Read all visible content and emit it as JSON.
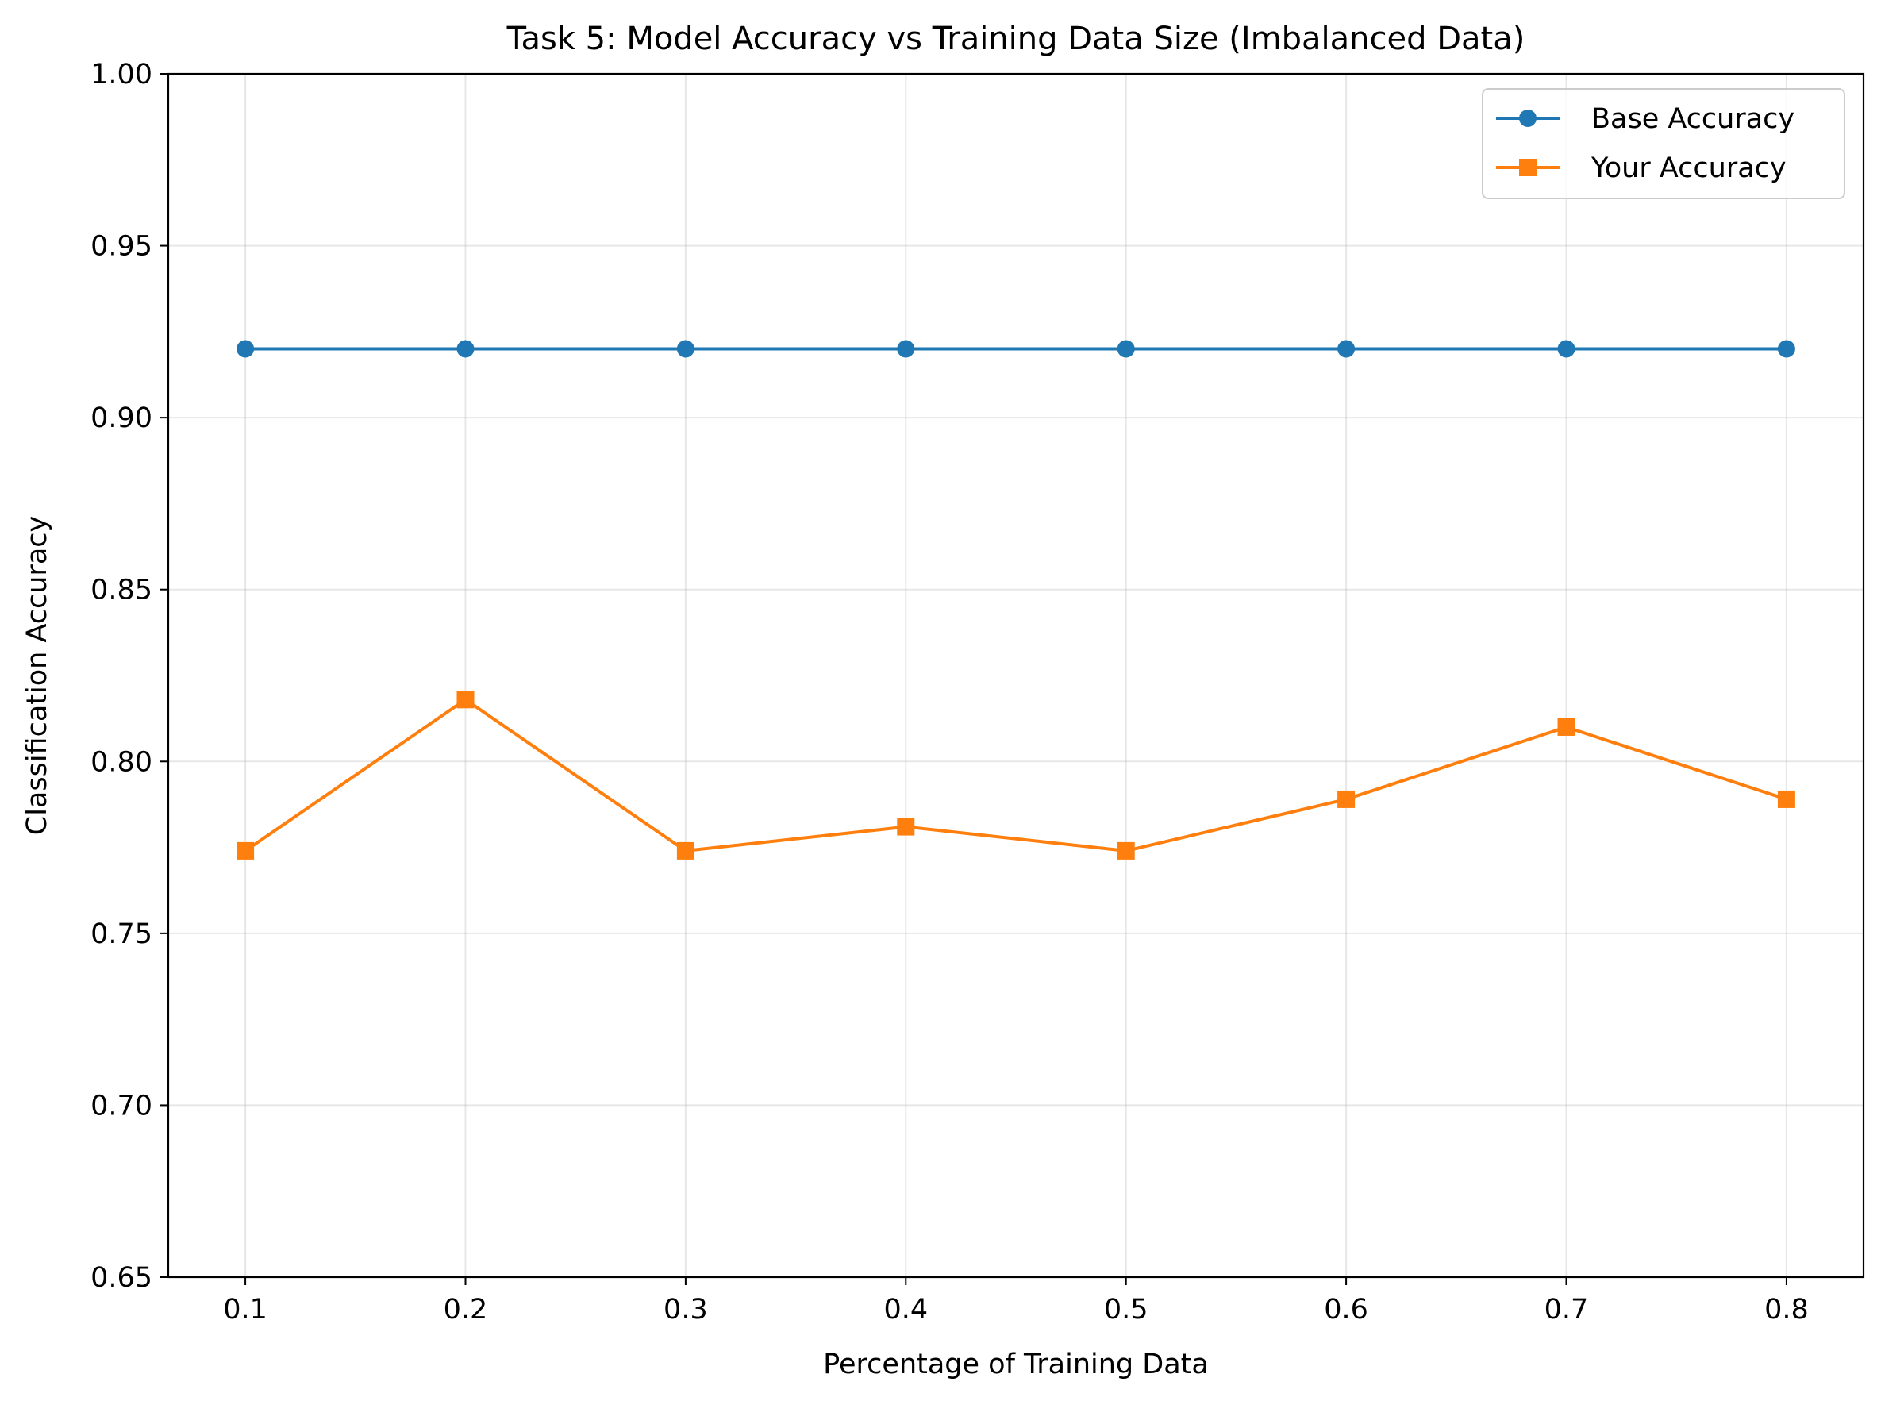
{
  "chart_data": {
    "type": "line",
    "title": "Task 5: Model Accuracy vs Training Data Size (Imbalanced Data)",
    "xlabel": "Percentage of Training Data",
    "ylabel": "Classification Accuracy",
    "x": [
      0.1,
      0.2,
      0.3,
      0.4,
      0.5,
      0.6,
      0.7,
      0.8
    ],
    "x_tick_labels": [
      "0.1",
      "0.2",
      "0.3",
      "0.4",
      "0.5",
      "0.6",
      "0.7",
      "0.8"
    ],
    "y_tick_labels": [
      "0.65",
      "0.70",
      "0.75",
      "0.80",
      "0.85",
      "0.90",
      "0.95",
      "1.00"
    ],
    "y_ticks": [
      0.65,
      0.7,
      0.75,
      0.8,
      0.85,
      0.9,
      0.95,
      1.0
    ],
    "xlim": [
      0.065,
      0.835
    ],
    "ylim": [
      0.65,
      1.0
    ],
    "grid": true,
    "legend_position": "top-right",
    "series": [
      {
        "name": "Base Accuracy",
        "color": "#1f77b4",
        "marker": "circle",
        "values": [
          0.92,
          0.92,
          0.92,
          0.92,
          0.92,
          0.92,
          0.92,
          0.92
        ]
      },
      {
        "name": "Your Accuracy",
        "color": "#ff7f0e",
        "marker": "square",
        "values": [
          0.774,
          0.818,
          0.774,
          0.781,
          0.774,
          0.789,
          0.81,
          0.789
        ]
      }
    ]
  }
}
